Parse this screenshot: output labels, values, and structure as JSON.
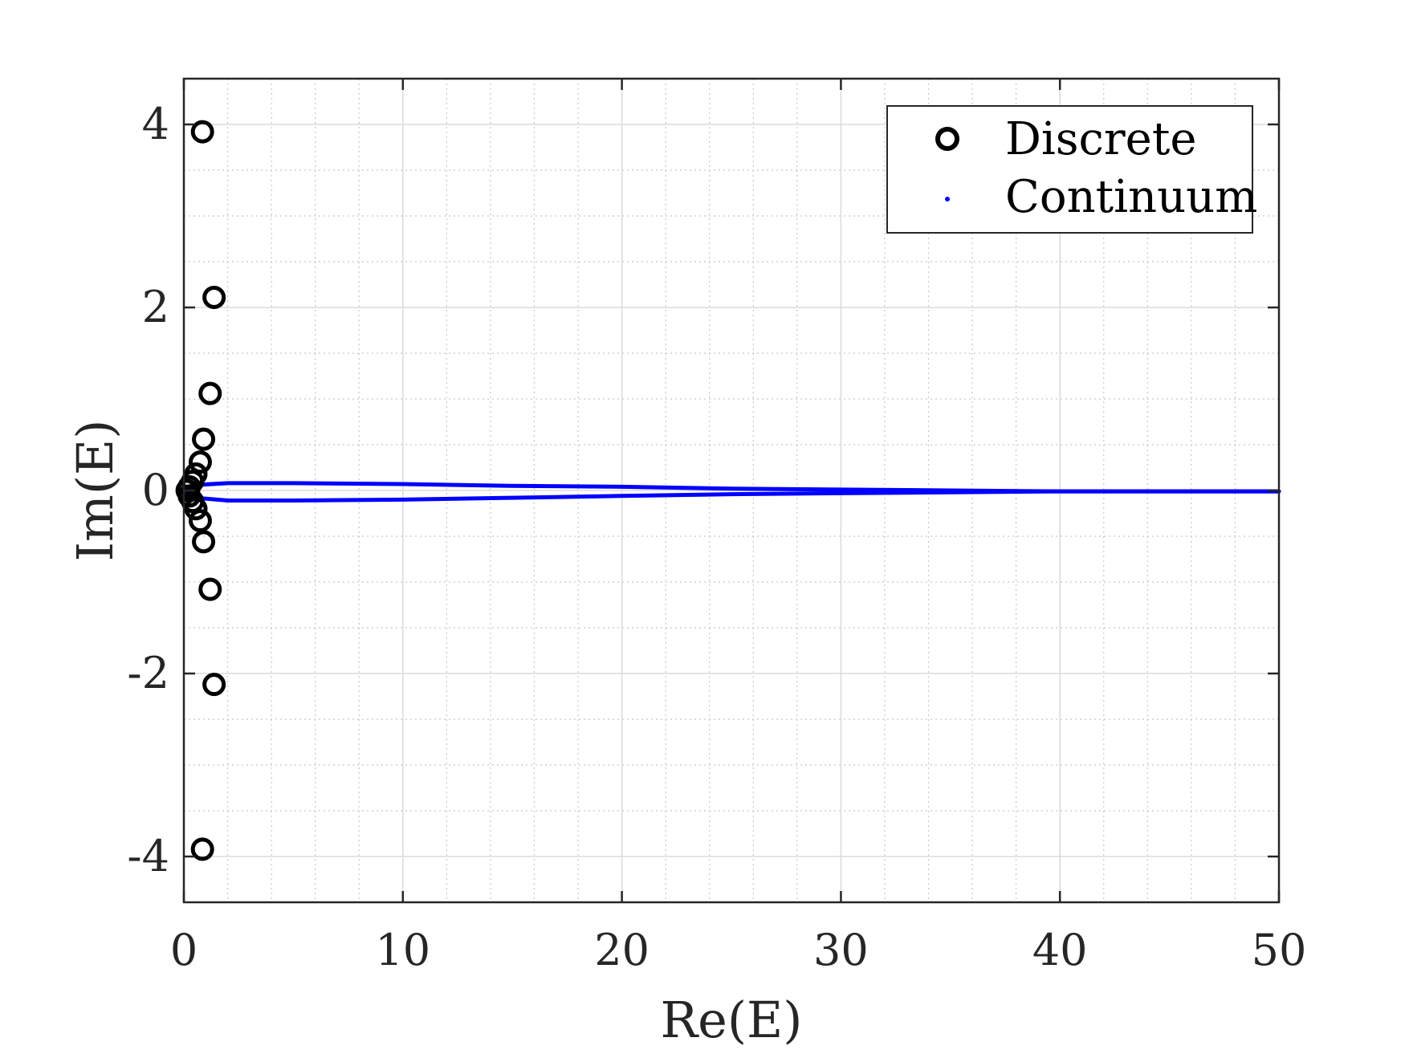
{
  "chart_data": {
    "type": "scatter",
    "title": "",
    "xlabel": "Re(E)",
    "ylabel": "Im(E)",
    "xlim": [
      0,
      50
    ],
    "ylim": [
      -4.5,
      4.5
    ],
    "x_ticks": [
      0,
      10,
      20,
      30,
      40,
      50
    ],
    "y_ticks": [
      -4,
      -2,
      0,
      2,
      4
    ],
    "x_tick_labels": [
      "0",
      "10",
      "20",
      "30",
      "40",
      "50"
    ],
    "y_tick_labels": [
      "-4",
      "-2",
      "0",
      "2",
      "4"
    ],
    "grid": true,
    "minor_grid": true,
    "legend_position": "top-right",
    "colors": {
      "discrete": "#000000",
      "continuum": "#0000ff"
    },
    "series": [
      {
        "name": "Discrete",
        "marker": "circle-open",
        "points": [
          {
            "x": 0.85,
            "y": 3.92
          },
          {
            "x": 1.38,
            "y": 2.11
          },
          {
            "x": 1.2,
            "y": 1.06
          },
          {
            "x": 0.9,
            "y": 0.56
          },
          {
            "x": 0.75,
            "y": 0.31
          },
          {
            "x": 0.55,
            "y": 0.18
          },
          {
            "x": 0.4,
            "y": 0.1
          },
          {
            "x": 0.25,
            "y": 0.04
          },
          {
            "x": 0.15,
            "y": 0.0
          },
          {
            "x": 0.25,
            "y": -0.06
          },
          {
            "x": 0.4,
            "y": -0.12
          },
          {
            "x": 0.55,
            "y": -0.2
          },
          {
            "x": 0.75,
            "y": -0.33
          },
          {
            "x": 0.9,
            "y": -0.56
          },
          {
            "x": 1.2,
            "y": -1.08
          },
          {
            "x": 1.38,
            "y": -2.12
          },
          {
            "x": 0.85,
            "y": -3.92
          }
        ]
      },
      {
        "name": "Continuum",
        "marker": "dot",
        "branches": [
          {
            "points": [
              {
                "x": 0,
                "y": 0.0
              },
              {
                "x": 0.5,
                "y": 0.06
              },
              {
                "x": 2,
                "y": 0.08
              },
              {
                "x": 5,
                "y": 0.08
              },
              {
                "x": 10,
                "y": 0.07
              },
              {
                "x": 15,
                "y": 0.05
              },
              {
                "x": 20,
                "y": 0.04
              },
              {
                "x": 25,
                "y": 0.02
              },
              {
                "x": 30,
                "y": 0.01
              },
              {
                "x": 35,
                "y": 0.0
              },
              {
                "x": 40,
                "y": -0.01
              },
              {
                "x": 45,
                "y": -0.01
              },
              {
                "x": 50,
                "y": -0.01
              }
            ]
          },
          {
            "points": [
              {
                "x": 0,
                "y": 0.0
              },
              {
                "x": 0.5,
                "y": -0.08
              },
              {
                "x": 2,
                "y": -0.11
              },
              {
                "x": 5,
                "y": -0.11
              },
              {
                "x": 10,
                "y": -0.1
              },
              {
                "x": 15,
                "y": -0.08
              },
              {
                "x": 20,
                "y": -0.06
              },
              {
                "x": 25,
                "y": -0.04
              },
              {
                "x": 30,
                "y": -0.03
              },
              {
                "x": 35,
                "y": -0.02
              },
              {
                "x": 40,
                "y": -0.01
              },
              {
                "x": 45,
                "y": -0.01
              },
              {
                "x": 50,
                "y": -0.01
              }
            ]
          }
        ]
      }
    ]
  }
}
